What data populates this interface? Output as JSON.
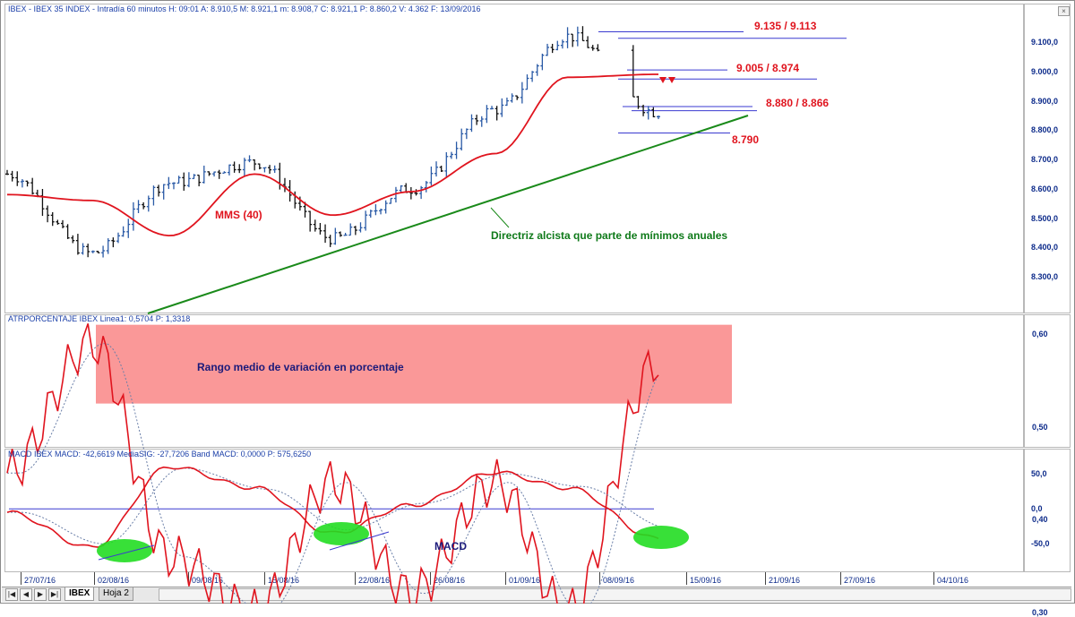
{
  "window": {
    "close_glyph": "×"
  },
  "pane1": {
    "header": "IBEX - IBEX 35 INDEX - Intradía 60 minutos  H: 09:01  A: 8.910,5  M: 8.921,1  m: 8.908,7  C: 8.921,1  P: 8.860,2  V: 4.362  F: 13/09/2016",
    "yticks": [
      "9.100,0",
      "9.000,0",
      "8.900,0",
      "8.800,0",
      "8.700,0",
      "8.600,0",
      "8.500,0",
      "8.400,0",
      "8.300,0"
    ],
    "annotations": {
      "r1": "9.135 / 9.113",
      "r2": "9.005 / 8.974",
      "r3": "8.880 / 8.866",
      "s1": "8.790",
      "mms": "MMS (40)",
      "trend": "Directriz alcista que parte de mínimos anuales"
    }
  },
  "pane2": {
    "header": "ATRPORCENTAJE  IBEX Linea1: 0,5704  P: 1,3318",
    "yticks": [
      "0,60",
      "0,50",
      "0,40",
      "0,30"
    ],
    "annotation": "Rango medio de variación en porcentaje"
  },
  "pane3": {
    "header": "MACD  IBEX MACD: -42,6619  MediaSIG: -27,7206  Band  MACD: 0,0000  P: 575,6250",
    "yticks": [
      "50,0",
      "0,0",
      "-50,0"
    ],
    "annotation": "MACD"
  },
  "xaxis": [
    "27/07/16",
    "02/08/16",
    "09/08/16",
    "15/08/16",
    "22/08/16",
    "26/08/16",
    "01/09/16",
    "08/09/16",
    "15/09/16",
    "21/09/16",
    "27/09/16",
    "04/10/16"
  ],
  "tabs": {
    "active": "IBEX",
    "other": "Hoja 2"
  },
  "colors": {
    "price_up": "#2a5aa6",
    "price_down": "#111111",
    "mms": "#e0141e",
    "trend": "#1a8a1a",
    "atr": "#e0141e",
    "signal": "#6a7fa8",
    "zone": "#f98d8d",
    "ellipse": "#22dd22",
    "ref_line": "#3a3ad0"
  },
  "chart_data": [
    {
      "type": "line",
      "title": "IBEX - IBEX 35 INDEX - Intradía 60 minutos",
      "x": [
        "27/07/16",
        "02/08/16",
        "09/08/16",
        "15/08/16",
        "22/08/16",
        "26/08/16",
        "01/09/16",
        "08/09/16",
        "13/09/16"
      ],
      "series": [
        {
          "values": [
            8650,
            8380,
            8620,
            8690,
            8430,
            8600,
            8870,
            9120,
            8860
          ]
        },
        {
          "name": "MMS (40)",
          "values": [
            8580,
            8560,
            8440,
            8650,
            8510,
            8590,
            8720,
            8980,
            8990
          ]
        }
      ],
      "levels": [
        9135,
        9113,
        9005,
        8974,
        8880,
        8866,
        8790
      ],
      "ylim": [
        8200,
        9200
      ]
    },
    {
      "type": "line",
      "title": "ATRPORCENTAJE",
      "x": [
        "27/07/16",
        "02/08/16",
        "09/08/16",
        "15/08/16",
        "22/08/16",
        "26/08/16",
        "01/09/16",
        "08/09/16",
        "13/09/16"
      ],
      "series": [
        {
          "name": "Linea1",
          "values": [
            0.45,
            0.59,
            0.36,
            0.3,
            0.44,
            0.32,
            0.44,
            0.3,
            0.57
          ]
        }
      ],
      "ylim": [
        0.25,
        0.65
      ]
    },
    {
      "type": "line",
      "title": "MACD",
      "x": [
        "27/07/16",
        "02/08/16",
        "09/08/16",
        "15/08/16",
        "22/08/16",
        "26/08/16",
        "01/09/16",
        "08/09/16",
        "13/09/16"
      ],
      "series": [
        {
          "name": "MACD",
          "values": [
            -5,
            -55,
            60,
            30,
            -35,
            5,
            52,
            30,
            -42.66
          ]
        },
        {
          "name": "MediaSIG",
          "values": [
            -5,
            -50,
            58,
            28,
            -30,
            8,
            50,
            32,
            -27.72
          ]
        }
      ],
      "ylim": [
        -70,
        70
      ]
    }
  ]
}
